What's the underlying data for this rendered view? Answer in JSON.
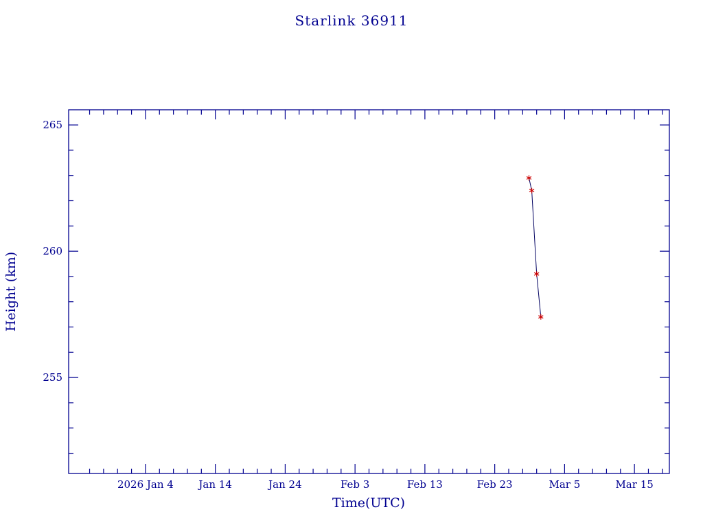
{
  "title": "Starlink 36911",
  "chart_data": {
    "type": "line",
    "title": "Starlink 36911",
    "xlabel": "Time(UTC)",
    "ylabel": "Height (km)",
    "x_tick_labels": [
      "2026 Jan 4",
      "Jan 14",
      "Jan 24",
      "Feb 3",
      "Feb 13",
      "Feb 23",
      "Mar 5",
      "Mar 15"
    ],
    "x_tick_days": [
      4,
      14,
      24,
      34,
      44,
      54,
      64,
      74
    ],
    "x_minor_step_days": 2,
    "xlim_days": [
      -7,
      79
    ],
    "y_ticks": [
      255,
      260,
      265
    ],
    "y_minor_step": 1,
    "ylim": [
      251.2,
      265.6
    ],
    "grid": false,
    "legend": false,
    "axis_color": "#000090",
    "text_color": "#000090",
    "background": "#ffffff",
    "series": [
      {
        "name": "height",
        "type": "line",
        "line_color": "#000060",
        "marker": "asterisk",
        "marker_color": "#cc0000",
        "points": [
          {
            "day_of_year_2026": 58.9,
            "height_km": 262.9
          },
          {
            "day_of_year_2026": 59.3,
            "height_km": 262.4
          },
          {
            "day_of_year_2026": 60.0,
            "height_km": 259.1
          },
          {
            "day_of_year_2026": 60.6,
            "height_km": 257.4
          }
        ]
      }
    ]
  }
}
